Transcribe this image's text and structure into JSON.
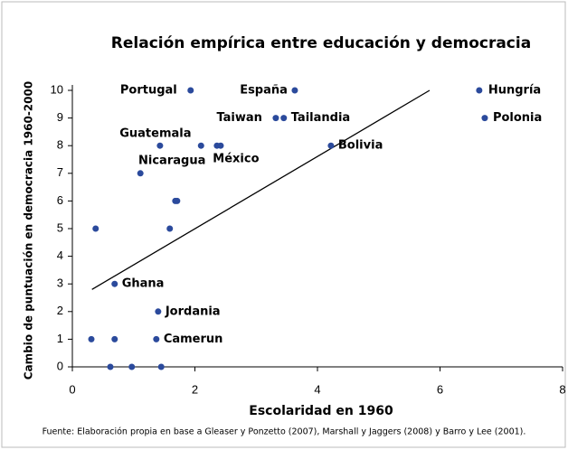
{
  "chart_data": {
    "type": "scatter",
    "title": "Relación empírica entre educación y democracia",
    "x_label": "Escolaridad en 1960",
    "y_label": "Cambio de puntuación en democracia 1960-2000",
    "source": "Fuente: Elaboración propia en base a Gleaser y Ponzetto (2007), Marshall y Jaggers (2008) y Barro y Lee (2001).",
    "color": "#2b4a9c",
    "x": [
      1.93,
      3.63,
      6.64,
      3.32,
      3.45,
      6.73,
      1.43,
      2.1,
      2.36,
      2.42,
      4.22,
      1.11,
      1.68,
      1.71,
      0.38,
      1.59,
      0.69,
      1.4,
      0.31,
      0.69,
      1.37,
      0.62,
      0.97,
      1.45
    ],
    "values": [
      10,
      10,
      10,
      9,
      9,
      9,
      8,
      8,
      8,
      8,
      8,
      7,
      6,
      6,
      5,
      5,
      3,
      2,
      1,
      1,
      1,
      0,
      0,
      0
    ],
    "labels": [
      "Portugal",
      "España",
      "Hungría",
      "Taiwan",
      "Tailandia",
      "Polonia",
      "Guatemala",
      null,
      "México",
      null,
      "Bolivia",
      "Nicaragua",
      null,
      null,
      null,
      null,
      "Ghana",
      "Jordania",
      null,
      null,
      "Camerun",
      null,
      null,
      null
    ],
    "trendline": {
      "x": [
        0.32,
        5.83
      ],
      "y": [
        2.8,
        10
      ]
    },
    "xlim": [
      0,
      8
    ],
    "xticks": [
      0,
      2,
      4,
      6,
      8
    ],
    "ylim": [
      0,
      10
    ],
    "yticks": [
      0,
      1,
      2,
      3,
      4,
      5,
      6,
      7,
      8,
      9,
      10
    ]
  }
}
